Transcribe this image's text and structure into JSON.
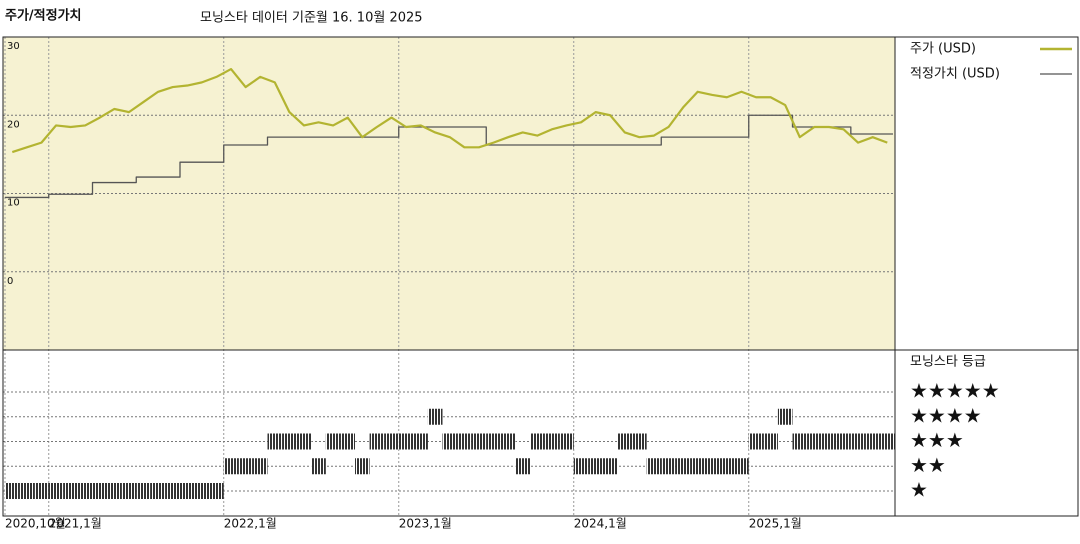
{
  "chart_data": {
    "type": "line",
    "title": "주가/적정가치",
    "subtitle": "모닝스타 데이터 기준월 16. 10월 2025",
    "x": [
      "2020-10",
      "2020-11",
      "2020-12",
      "2021-01",
      "2021-02",
      "2021-03",
      "2021-04",
      "2021-05",
      "2021-06",
      "2021-07",
      "2021-08",
      "2021-09",
      "2021-10",
      "2021-11",
      "2021-12",
      "2022-01",
      "2022-02",
      "2022-03",
      "2022-04",
      "2022-05",
      "2022-06",
      "2022-07",
      "2022-08",
      "2022-09",
      "2022-10",
      "2022-11",
      "2022-12",
      "2023-01",
      "2023-02",
      "2023-03",
      "2023-04",
      "2023-05",
      "2023-06",
      "2023-07",
      "2023-08",
      "2023-09",
      "2023-10",
      "2023-11",
      "2023-12",
      "2024-01",
      "2024-02",
      "2024-03",
      "2024-04",
      "2024-05",
      "2024-06",
      "2024-07",
      "2024-08",
      "2024-09",
      "2024-10",
      "2024-11",
      "2024-12",
      "2025-01",
      "2025-02",
      "2025-03",
      "2025-04",
      "2025-05",
      "2025-06",
      "2025-07",
      "2025-08",
      "2025-09",
      "2025-10"
    ],
    "series": [
      {
        "name": "주가 (USD)",
        "color": "#b3b431",
        "values": [
          15.3,
          15.9,
          16.5,
          18.7,
          18.5,
          18.7,
          19.7,
          20.8,
          20.4,
          21.7,
          23,
          23.6,
          23.8,
          24.2,
          24.9,
          25.9,
          23.6,
          24.9,
          24.2,
          20.4,
          18.7,
          19.1,
          18.7,
          19.7,
          17.2,
          18.5,
          19.7,
          18.5,
          18.7,
          17.8,
          17.2,
          15.9,
          15.9,
          16.5,
          17.2,
          17.8,
          17.4,
          18.2,
          18.7,
          19.1,
          20.4,
          20,
          17.8,
          17.2,
          17.4,
          18.5,
          21,
          23,
          22.6,
          22.3,
          23,
          22.3,
          22.3,
          21.3,
          17.2,
          18.5,
          18.5,
          18.2,
          16.5,
          17.2,
          16.5
        ]
      },
      {
        "name": "적정가치 (USD)",
        "color": "#555555",
        "step": true,
        "values": [
          9.5,
          9.5,
          9.5,
          9.9,
          9.9,
          9.9,
          11.4,
          11.4,
          11.4,
          12.1,
          12.1,
          12.1,
          14,
          14,
          14,
          16.2,
          16.2,
          16.2,
          17.2,
          17.2,
          17.2,
          17.2,
          17.2,
          17.2,
          17.2,
          17.2,
          17.2,
          18.5,
          18.5,
          18.5,
          18.5,
          18.5,
          18.5,
          16.2,
          16.2,
          16.2,
          16.2,
          16.2,
          16.2,
          16.2,
          16.2,
          16.2,
          16.2,
          16.2,
          16.2,
          17.2,
          17.2,
          17.2,
          17.2,
          17.2,
          17.2,
          20,
          20,
          20,
          18.5,
          18.5,
          18.5,
          18.5,
          17.6,
          17.6,
          17.6
        ]
      }
    ],
    "ylim": [
      -10,
      30
    ],
    "yticks": [
      30,
      20,
      10,
      0
    ],
    "xticks": [
      {
        "value": "2020-10",
        "label": "2020,10월"
      },
      {
        "value": "2021-01",
        "label": "2021,1월"
      },
      {
        "value": "2022-01",
        "label": "2022,1월"
      },
      {
        "value": "2023-01",
        "label": "2023,1월"
      },
      {
        "value": "2024-01",
        "label": "2024,1월"
      },
      {
        "value": "2025-01",
        "label": "2025,1월"
      }
    ],
    "grid": true,
    "background": "#f6f2d2",
    "ratings": {
      "title": "모닝스타 등급",
      "color": "#333333",
      "values": [
        1,
        1,
        1,
        1,
        1,
        1,
        1,
        1,
        1,
        1,
        1,
        1,
        1,
        1,
        1,
        2,
        2,
        2,
        3,
        3,
        3,
        2,
        3,
        3,
        2,
        3,
        3,
        3,
        3,
        4,
        3,
        3,
        3,
        3,
        3,
        2,
        3,
        3,
        3,
        2,
        2,
        2,
        3,
        3,
        2,
        2,
        2,
        2,
        2,
        2,
        2,
        3,
        3,
        4,
        3,
        3,
        3,
        3,
        3,
        3,
        3
      ],
      "ticks": [
        {
          "value": 5,
          "label": "★★★★★"
        },
        {
          "value": 4,
          "label": "★★★★"
        },
        {
          "value": 3,
          "label": "★★★"
        },
        {
          "value": 2,
          "label": "★★"
        },
        {
          "value": 1,
          "label": "★"
        }
      ]
    }
  }
}
